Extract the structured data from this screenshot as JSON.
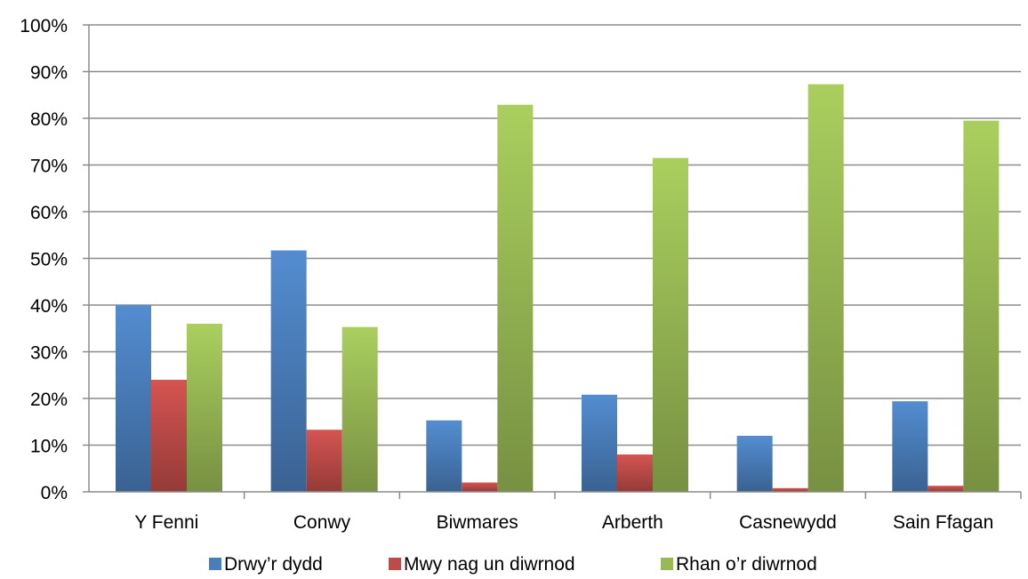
{
  "chart_data": {
    "type": "bar",
    "categories": [
      "Y Fenni",
      "Conwy",
      "Biwmares",
      "Arberth",
      "Casnewydd",
      "Sain Ffagan"
    ],
    "series": [
      {
        "name": "Drwy’r dydd",
        "values": [
          40,
          51.7,
          15.3,
          20.8,
          12,
          19.4
        ],
        "color": "#4a7ebb"
      },
      {
        "name": "Mwy nag un diwrnod",
        "values": [
          24,
          13.3,
          2,
          8,
          0.8,
          1.3
        ],
        "color": "#be4b48"
      },
      {
        "name": "Rhan o’r diwrnod",
        "values": [
          36,
          35.3,
          82.9,
          71.5,
          87.3,
          79.5
        ],
        "color": "#98b954"
      }
    ],
    "y_ticks": [
      "0%",
      "10%",
      "20%",
      "30%",
      "40%",
      "50%",
      "60%",
      "70%",
      "80%",
      "90%",
      "100%"
    ],
    "ylim": [
      0,
      100
    ],
    "y_unit": "%",
    "grid": true,
    "legend_position": "bottom"
  }
}
